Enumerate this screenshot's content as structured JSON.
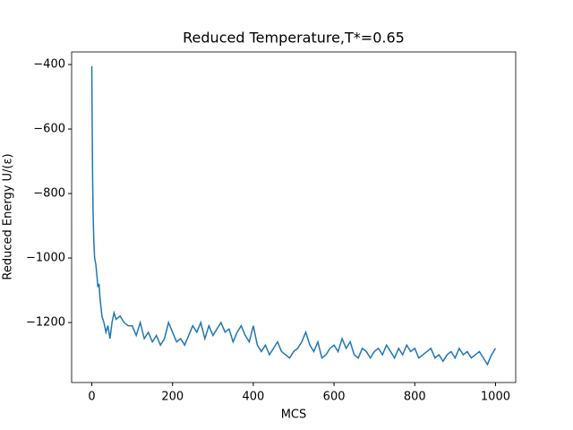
{
  "chart_data": {
    "type": "line",
    "title": "Reduced Temperature,T*=0.65",
    "x_label": "MCS",
    "y_label": "Reduced Energy U/(ε)",
    "x": [
      0,
      1,
      2,
      3,
      5,
      7,
      10,
      13,
      15,
      18,
      20,
      25,
      30,
      35,
      40,
      45,
      50,
      55,
      60,
      70,
      80,
      90,
      100,
      110,
      120,
      130,
      140,
      150,
      160,
      170,
      180,
      190,
      200,
      210,
      220,
      230,
      240,
      250,
      260,
      270,
      280,
      290,
      300,
      310,
      320,
      330,
      340,
      350,
      360,
      370,
      380,
      390,
      400,
      410,
      420,
      430,
      440,
      450,
      460,
      470,
      480,
      490,
      500,
      510,
      520,
      530,
      540,
      550,
      560,
      570,
      580,
      590,
      600,
      610,
      620,
      630,
      640,
      650,
      660,
      670,
      680,
      690,
      700,
      710,
      720,
      730,
      740,
      750,
      760,
      770,
      780,
      790,
      800,
      810,
      820,
      830,
      840,
      850,
      860,
      870,
      880,
      890,
      900,
      910,
      920,
      930,
      940,
      950,
      960,
      970,
      980,
      990,
      1000
    ],
    "series": [
      {
        "name": "energy",
        "color": "#1f77b4",
        "values": [
          -405,
          -600,
          -750,
          -850,
          -950,
          -1000,
          -1020,
          -1060,
          -1090,
          -1080,
          -1120,
          -1180,
          -1200,
          -1230,
          -1210,
          -1250,
          -1200,
          -1170,
          -1190,
          -1180,
          -1200,
          -1210,
          -1210,
          -1240,
          -1200,
          -1250,
          -1230,
          -1260,
          -1240,
          -1270,
          -1250,
          -1200,
          -1230,
          -1260,
          -1250,
          -1270,
          -1240,
          -1210,
          -1230,
          -1200,
          -1250,
          -1210,
          -1240,
          -1220,
          -1200,
          -1230,
          -1220,
          -1260,
          -1230,
          -1210,
          -1240,
          -1260,
          -1210,
          -1270,
          -1290,
          -1270,
          -1300,
          -1280,
          -1260,
          -1290,
          -1300,
          -1310,
          -1290,
          -1280,
          -1260,
          -1230,
          -1270,
          -1290,
          -1260,
          -1310,
          -1300,
          -1280,
          -1270,
          -1290,
          -1250,
          -1280,
          -1260,
          -1300,
          -1310,
          -1280,
          -1290,
          -1310,
          -1290,
          -1280,
          -1300,
          -1270,
          -1290,
          -1310,
          -1280,
          -1300,
          -1270,
          -1290,
          -1280,
          -1310,
          -1300,
          -1290,
          -1280,
          -1310,
          -1300,
          -1320,
          -1300,
          -1290,
          -1310,
          -1280,
          -1300,
          -1290,
          -1310,
          -1300,
          -1290,
          -1310,
          -1330,
          -1300,
          -1280
        ]
      }
    ],
    "xlim": [
      -50,
      1050
    ],
    "ylim": [
      -1386,
      -361
    ],
    "xticks": [
      0,
      200,
      400,
      600,
      800,
      1000
    ],
    "yticks": [
      {
        "value": -1200,
        "label": "−1200"
      },
      {
        "value": -1000,
        "label": "−1000"
      },
      {
        "value": -800,
        "label": "−800"
      },
      {
        "value": -600,
        "label": "−600"
      },
      {
        "value": -400,
        "label": "−400"
      }
    ]
  }
}
